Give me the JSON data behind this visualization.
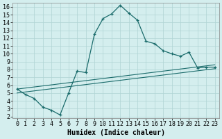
{
  "xlabel": "Humidex (Indice chaleur)",
  "xlim": [
    -0.5,
    23.5
  ],
  "ylim": [
    1.8,
    16.5
  ],
  "xticks": [
    0,
    1,
    2,
    3,
    4,
    5,
    6,
    7,
    8,
    9,
    10,
    11,
    12,
    13,
    14,
    15,
    16,
    17,
    18,
    19,
    20,
    21,
    22,
    23
  ],
  "yticks": [
    2,
    3,
    4,
    5,
    6,
    7,
    8,
    9,
    10,
    11,
    12,
    13,
    14,
    15,
    16
  ],
  "background_color": "#d4eeee",
  "grid_color": "#afd4d4",
  "line_color": "#1a6b6b",
  "main_x": [
    0,
    1,
    2,
    3,
    4,
    5,
    6,
    7,
    8,
    9,
    10,
    11,
    12,
    13,
    14,
    15,
    16,
    17,
    18,
    19,
    20,
    21,
    22,
    23
  ],
  "main_y": [
    5.5,
    4.8,
    4.3,
    3.2,
    2.8,
    2.2,
    5.0,
    7.8,
    7.6,
    12.5,
    14.5,
    15.1,
    16.2,
    15.2,
    14.3,
    11.6,
    11.3,
    10.4,
    10.0,
    9.7,
    10.2,
    8.2,
    8.3,
    8.3
  ],
  "trend1_x": [
    0,
    23
  ],
  "trend1_y": [
    5.5,
    8.6
  ],
  "trend2_x": [
    0,
    23
  ],
  "trend2_y": [
    5.0,
    8.1
  ],
  "axis_fontsize": 7,
  "tick_fontsize": 6
}
